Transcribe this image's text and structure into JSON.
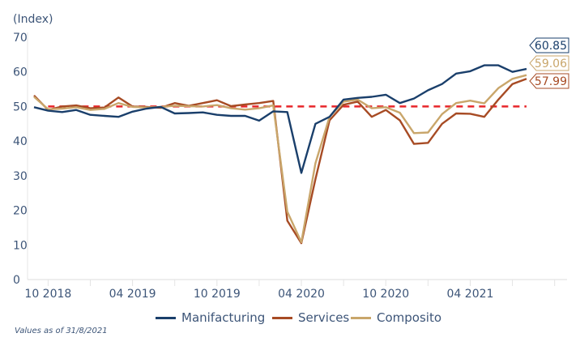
{
  "chart_data": {
    "type": "line",
    "title": "",
    "unit_label": "(Index)",
    "xlabel": "",
    "ylabel": "(Index)",
    "ylim": [
      0,
      70
    ],
    "yticks": [
      0,
      10,
      20,
      30,
      40,
      50,
      60,
      70
    ],
    "x_start": "09 2018",
    "x_end": "08 2021",
    "x_ticks_every_months": 3,
    "x_tick_labels": [
      {
        "label": "10 2018",
        "index": 1
      },
      {
        "label": "04 2019",
        "index": 7
      },
      {
        "label": "10 2019",
        "index": 13
      },
      {
        "label": "04 2020",
        "index": 19
      },
      {
        "label": "10 2020",
        "index": 25
      },
      {
        "label": "04 2021",
        "index": 31
      }
    ],
    "grid": false,
    "reference_line": {
      "value": 50,
      "color": "#e8262a",
      "style": "dashed"
    },
    "series": [
      {
        "name": "Manifacturing",
        "color": "#1a3f6b",
        "values": [
          49.8,
          48.8,
          48.4,
          49.0,
          47.6,
          47.3,
          47.0,
          48.5,
          49.4,
          49.9,
          48.0,
          48.1,
          48.3,
          47.6,
          47.3,
          47.3,
          45.9,
          48.6,
          48.4,
          30.8,
          45.0,
          47.0,
          52.0,
          52.5,
          52.8,
          53.4,
          51.0,
          52.3,
          54.7,
          56.5,
          59.5,
          60.2,
          61.9,
          61.9,
          60.0,
          60.85
        ]
      },
      {
        "name": "Services",
        "color": "#a74b24",
        "values": [
          53.2,
          49.0,
          50.0,
          50.3,
          49.5,
          49.7,
          52.6,
          50.0,
          49.9,
          49.6,
          51.0,
          50.2,
          51.0,
          51.8,
          50.1,
          50.6,
          51.0,
          51.6,
          17.0,
          10.5,
          29.0,
          46.0,
          50.5,
          51.4,
          47.0,
          49.0,
          46.0,
          39.2,
          39.5,
          45.0,
          48.0,
          47.9,
          47.0,
          52.0,
          56.5,
          57.99
        ]
      },
      {
        "name": "Composito",
        "color": "#c9a66b",
        "values": [
          52.8,
          49.2,
          49.4,
          49.8,
          49.0,
          49.3,
          51.0,
          49.9,
          49.7,
          49.9,
          50.2,
          50.1,
          50.0,
          50.4,
          49.5,
          49.1,
          49.5,
          50.3,
          19.6,
          10.8,
          33.6,
          47.0,
          51.4,
          52.0,
          49.5,
          49.8,
          48.2,
          42.3,
          42.5,
          47.8,
          51.0,
          51.7,
          50.9,
          55.3,
          58.0,
          59.06
        ]
      }
    ],
    "end_labels": [
      {
        "series": "Manifacturing",
        "text": "60.85",
        "color": "#1a3f6b"
      },
      {
        "series": "Composito",
        "text": "59.06",
        "color": "#c9a66b"
      },
      {
        "series": "Services",
        "text": "57.99",
        "color": "#a74b24"
      }
    ],
    "legend": {
      "position": "bottom-center",
      "entries": [
        {
          "name": "Manifacturing",
          "color": "#1a3f6b"
        },
        {
          "name": "Services",
          "color": "#a74b24"
        },
        {
          "name": "Composito",
          "color": "#c9a66b"
        }
      ]
    },
    "footnote": "Values as of 31/8/2021"
  }
}
